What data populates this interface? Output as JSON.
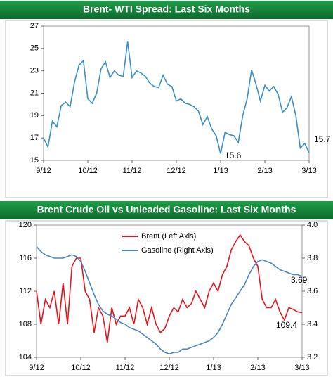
{
  "chart_data": [
    {
      "type": "line",
      "title": "Brent- WTI Spread: Last Six Months",
      "categories": [
        "9/12",
        null,
        null,
        null,
        null,
        null,
        null,
        null,
        null,
        null,
        "10/12",
        null,
        null,
        null,
        null,
        null,
        null,
        null,
        null,
        null,
        "11/12",
        null,
        null,
        null,
        null,
        null,
        null,
        null,
        null,
        null,
        "12/12",
        null,
        null,
        null,
        null,
        null,
        null,
        null,
        null,
        null,
        "1/13",
        null,
        null,
        null,
        null,
        null,
        null,
        null,
        null,
        null,
        "2/13",
        null,
        null,
        null,
        null,
        null,
        null,
        null,
        null,
        null,
        "3/13"
      ],
      "values": [
        17.0,
        16.2,
        18.5,
        18.0,
        19.9,
        20.2,
        19.8,
        22.0,
        23.5,
        23.9,
        20.5,
        20.1,
        21.0,
        23.2,
        23.8,
        22.4,
        23.0,
        22.6,
        22.5,
        25.6,
        22.4,
        23.0,
        22.8,
        22.5,
        21.9,
        21.6,
        21.5,
        22.6,
        21.8,
        21.6,
        20.3,
        20.5,
        20.1,
        20.0,
        19.8,
        19.4,
        18.2,
        18.9,
        17.8,
        17.2,
        15.6,
        17.5,
        17.3,
        17.2,
        16.6,
        19.0,
        20.5,
        23.1,
        21.8,
        20.3,
        21.7,
        21.2,
        21.6,
        20.9,
        19.3,
        19.7,
        20.7,
        19.0,
        16.1,
        16.5,
        15.7
      ],
      "color": "#3b8fc7",
      "ylim": [
        15,
        27
      ],
      "yticks": [
        15,
        17,
        19,
        21,
        23,
        25,
        27
      ],
      "annotations": [
        "15.6",
        "15.7"
      ]
    },
    {
      "type": "line",
      "title": "Brent Crude Oil vs Unleaded Gasoline: Last Six Months",
      "categories": [
        "9/12",
        null,
        null,
        null,
        null,
        null,
        null,
        null,
        null,
        null,
        "10/12",
        null,
        null,
        null,
        null,
        null,
        null,
        null,
        null,
        null,
        "11/12",
        null,
        null,
        null,
        null,
        null,
        null,
        null,
        null,
        null,
        "12/12",
        null,
        null,
        null,
        null,
        null,
        null,
        null,
        null,
        null,
        "1/13",
        null,
        null,
        null,
        null,
        null,
        null,
        null,
        null,
        null,
        "2/13",
        null,
        null,
        null,
        null,
        null,
        null,
        null,
        null,
        null,
        "3/13"
      ],
      "series": [
        {
          "name": "Brent (Left Axis)",
          "color": "#e8141b",
          "values": [
            112,
            108,
            111,
            110,
            112,
            108,
            113,
            108,
            115,
            116,
            116,
            112,
            111,
            107,
            110,
            109,
            105.8,
            110,
            108,
            109,
            109,
            110,
            108,
            111,
            110,
            108,
            110,
            108,
            107,
            107.5,
            109,
            110,
            109.5,
            111,
            110,
            110.5,
            112,
            111,
            110,
            112,
            113,
            112,
            114,
            115,
            117,
            118,
            118.8,
            118,
            117.5,
            116,
            115,
            111,
            110,
            110,
            111,
            109.5,
            108.5,
            110,
            109.8,
            109.5,
            109.4
          ]
        },
        {
          "name": "Gasoline (Right Axis)",
          "color": "#4a86c5",
          "axis": "y2",
          "values": [
            3.87,
            3.84,
            3.82,
            3.81,
            3.8,
            3.8,
            3.8,
            3.81,
            3.82,
            3.81,
            3.78,
            3.72,
            3.65,
            3.58,
            3.52,
            3.48,
            3.46,
            3.45,
            3.43,
            3.41,
            3.4,
            3.38,
            3.37,
            3.36,
            3.34,
            3.32,
            3.3,
            3.28,
            3.25,
            3.23,
            3.22,
            3.23,
            3.23,
            3.25,
            3.25,
            3.26,
            3.27,
            3.28,
            3.29,
            3.3,
            3.32,
            3.35,
            3.4,
            3.46,
            3.52,
            3.56,
            3.6,
            3.64,
            3.7,
            3.75,
            3.78,
            3.79,
            3.78,
            3.77,
            3.75,
            3.73,
            3.72,
            3.71,
            3.7,
            3.7,
            3.69
          ]
        }
      ],
      "ylim": [
        104,
        120
      ],
      "yticks": [
        104,
        108,
        112,
        116,
        120
      ],
      "y2lim": [
        3.2,
        4
      ],
      "y2ticks": [
        3.2,
        3.4,
        3.6,
        3.8,
        {
          "value": 4,
          "label": "4.0"
        }
      ],
      "annotations": [
        "3.69",
        "109.4"
      ]
    }
  ]
}
